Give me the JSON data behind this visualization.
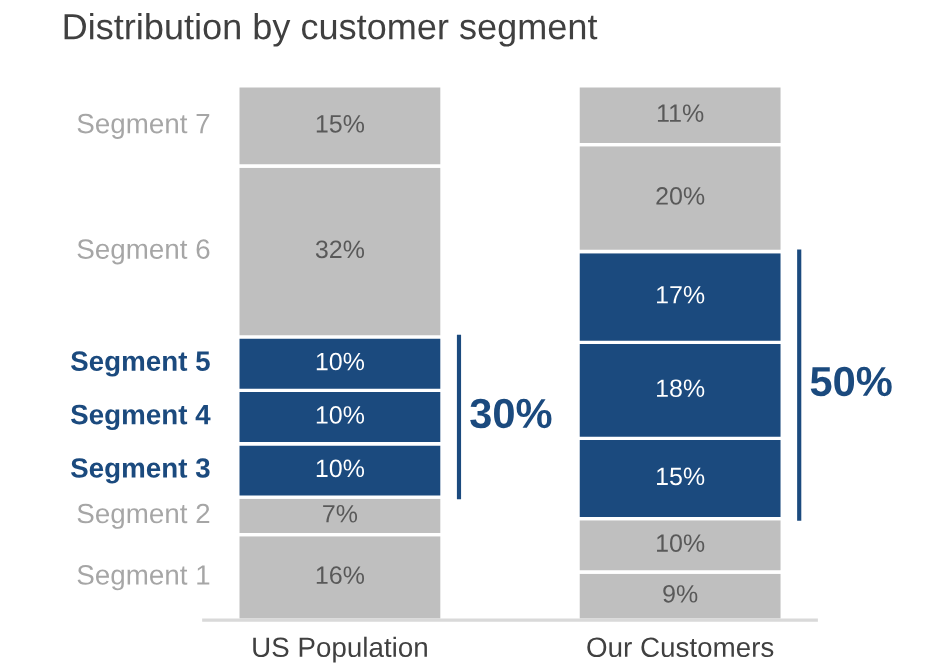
{
  "chart_data": {
    "type": "bar",
    "title": "Distribution by customer segment",
    "stacked": true,
    "legend": false,
    "categories": [
      "US Population",
      "Our Customers"
    ],
    "series": [
      {
        "name": "Segment 1",
        "color": "#bfbfbf",
        "values": [
          16,
          9
        ],
        "value_labels": [
          "16%",
          "9%"
        ]
      },
      {
        "name": "Segment 2",
        "color": "#bfbfbf",
        "values": [
          7,
          10
        ],
        "value_labels": [
          "7%",
          "10%"
        ]
      },
      {
        "name": "Segment 3",
        "color": "#1b4a7e",
        "values": [
          10,
          15
        ],
        "value_labels": [
          "10%",
          "15%"
        ]
      },
      {
        "name": "Segment 4",
        "color": "#1b4a7e",
        "values": [
          10,
          18
        ],
        "value_labels": [
          "10%",
          "18%"
        ]
      },
      {
        "name": "Segment 5",
        "color": "#1b4a7e",
        "values": [
          10,
          17
        ],
        "value_labels": [
          "10%",
          "17%"
        ]
      },
      {
        "name": "Segment 6",
        "color": "#bfbfbf",
        "values": [
          32,
          20
        ],
        "value_labels": [
          "32%",
          "20%"
        ]
      },
      {
        "name": "Segment 7",
        "color": "#bfbfbf",
        "values": [
          15,
          11
        ],
        "value_labels": [
          "15%",
          "11%"
        ]
      }
    ],
    "annotations": [
      "30%",
      "50%"
    ]
  }
}
